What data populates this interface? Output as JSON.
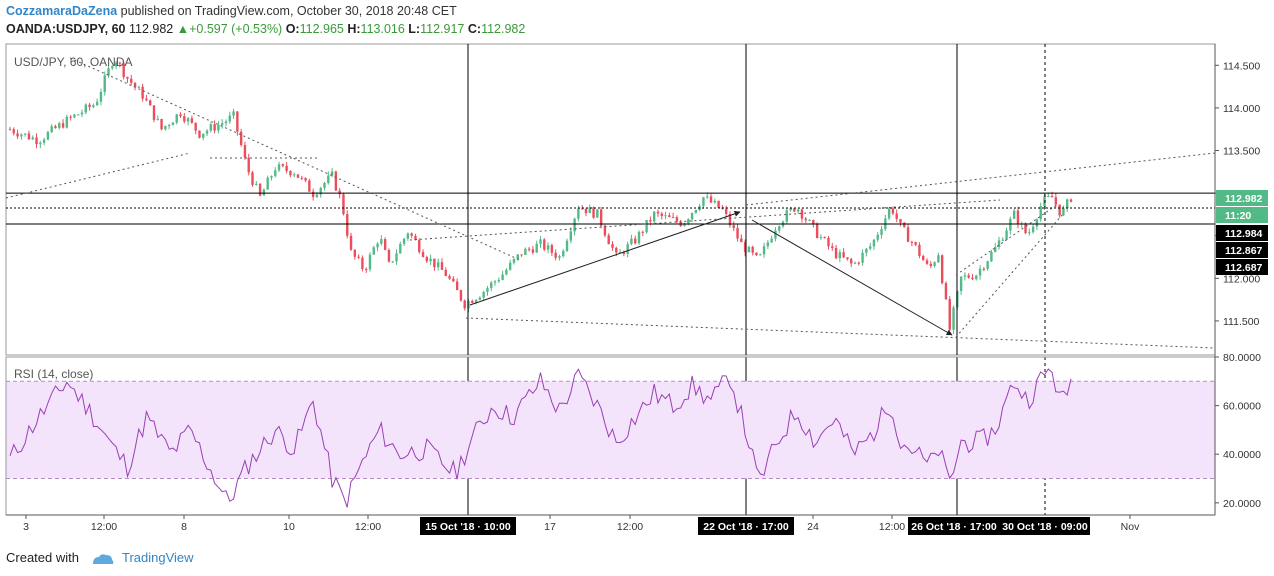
{
  "header": {
    "author": "CozzamaraDaZena",
    "published": "published on TradingView.com, October 30, 2018 20:48 CET",
    "symbol": "OANDA:USDJPY, 60",
    "last": "112.982",
    "change": "+0.597 (+0.53%)",
    "o_label": "O:",
    "o": "112.965",
    "h_label": "H:",
    "h": "113.016",
    "l_label": "L:",
    "l": "112.917",
    "c_label": "C:",
    "c": "112.982"
  },
  "footer": {
    "created_with": "Created with",
    "brand": "TradingView"
  },
  "colors": {
    "up": "#53b987",
    "down": "#eb4d5c",
    "rsi_line": "#9a3fb5",
    "rsi_band": "#f3e4fb",
    "axis_tag": "#000000",
    "last_tag": "#53b987"
  },
  "chart_data": [
    {
      "type": "candlestick",
      "title": "USD/JPY, 60, OANDA",
      "ylim": [
        111.1,
        114.75
      ],
      "y_ticks": [
        "114.500",
        "114.000",
        "113.500",
        "113.000",
        "112.500",
        "112.000",
        "111.500"
      ],
      "price_tags": [
        {
          "label": "112.982",
          "value": 112.982,
          "style": "last"
        },
        {
          "label": "11:20",
          "value": 112.86,
          "style": "last"
        },
        {
          "label": "112.984",
          "value": 112.7,
          "style": "dark"
        },
        {
          "label": "112.867",
          "value": 112.575,
          "style": "dark"
        },
        {
          "label": "112.687",
          "value": 112.45,
          "style": "dark"
        }
      ],
      "horizontal_levels": [
        112.984,
        112.867,
        112.687
      ],
      "x_ticks": [
        "3",
        "12:00",
        "8",
        "10",
        "12:00",
        "17",
        "12:00",
        "24",
        "12:00",
        "Nov"
      ],
      "x_markers": [
        "15 Oct '18 · 10:00",
        "22 Oct '18 · 17:00",
        "26 Oct '18 · 17:00",
        "30 Oct '18 · 09:00"
      ],
      "anchors": [
        [
          0,
          113.75
        ],
        [
          15,
          113.62
        ],
        [
          30,
          113.85
        ],
        [
          45,
          114.05
        ],
        [
          55,
          114.6
        ],
        [
          62,
          114.35
        ],
        [
          70,
          114.15
        ],
        [
          80,
          113.75
        ],
        [
          90,
          113.95
        ],
        [
          100,
          113.7
        ],
        [
          110,
          113.8
        ],
        [
          118,
          113.9
        ],
        [
          125,
          113.3
        ],
        [
          132,
          112.95
        ],
        [
          140,
          113.3
        ],
        [
          150,
          113.25
        ],
        [
          160,
          113.0
        ],
        [
          170,
          113.2
        ],
        [
          175,
          112.9
        ],
        [
          180,
          112.3
        ],
        [
          187,
          112.1
        ],
        [
          195,
          112.5
        ],
        [
          200,
          112.15
        ],
        [
          210,
          112.55
        ],
        [
          220,
          112.25
        ],
        [
          230,
          112.05
        ],
        [
          240,
          111.7
        ],
        [
          250,
          111.85
        ],
        [
          260,
          112.05
        ],
        [
          270,
          112.3
        ],
        [
          280,
          112.4
        ],
        [
          290,
          112.25
        ],
        [
          300,
          112.85
        ],
        [
          310,
          112.75
        ],
        [
          320,
          112.25
        ],
        [
          330,
          112.45
        ],
        [
          340,
          112.75
        ],
        [
          355,
          112.65
        ],
        [
          366,
          112.95
        ],
        [
          376,
          112.8
        ],
        [
          386,
          112.4
        ],
        [
          395,
          112.2
        ],
        [
          405,
          112.65
        ],
        [
          415,
          112.85
        ],
        [
          425,
          112.55
        ],
        [
          435,
          112.3
        ],
        [
          445,
          112.15
        ],
        [
          455,
          112.4
        ],
        [
          465,
          112.85
        ],
        [
          470,
          112.6
        ],
        [
          477,
          112.4
        ],
        [
          485,
          112.1
        ],
        [
          490,
          112.3
        ],
        [
          496,
          111.4
        ],
        [
          502,
          112.0
        ],
        [
          510,
          112.05
        ],
        [
          520,
          112.35
        ],
        [
          530,
          112.75
        ],
        [
          537,
          112.5
        ],
        [
          545,
          112.9
        ],
        [
          550,
          112.95
        ],
        [
          555,
          112.75
        ],
        [
          560,
          112.95
        ]
      ]
    },
    {
      "type": "line",
      "title": "RSI (14, close)",
      "ylim": [
        15,
        80
      ],
      "y_ticks": [
        "80.0000",
        "60.0000",
        "40.0000",
        "20.0000"
      ],
      "band": [
        30,
        70
      ],
      "anchors": [
        [
          0,
          38
        ],
        [
          15,
          55
        ],
        [
          30,
          70
        ],
        [
          42,
          58
        ],
        [
          55,
          42
        ],
        [
          62,
          35
        ],
        [
          72,
          55
        ],
        [
          85,
          40
        ],
        [
          95,
          50
        ],
        [
          105,
          35
        ],
        [
          115,
          20
        ],
        [
          125,
          35
        ],
        [
          140,
          50
        ],
        [
          150,
          42
        ],
        [
          160,
          62
        ],
        [
          170,
          30
        ],
        [
          177,
          20
        ],
        [
          185,
          35
        ],
        [
          195,
          50
        ],
        [
          205,
          40
        ],
        [
          220,
          42
        ],
        [
          235,
          32
        ],
        [
          245,
          48
        ],
        [
          255,
          60
        ],
        [
          265,
          55
        ],
        [
          280,
          70
        ],
        [
          290,
          58
        ],
        [
          300,
          72
        ],
        [
          310,
          60
        ],
        [
          320,
          45
        ],
        [
          330,
          55
        ],
        [
          340,
          65
        ],
        [
          350,
          60
        ],
        [
          360,
          68
        ],
        [
          370,
          62
        ],
        [
          380,
          72
        ],
        [
          390,
          45
        ],
        [
          395,
          28
        ],
        [
          405,
          45
        ],
        [
          415,
          58
        ],
        [
          425,
          45
        ],
        [
          435,
          55
        ],
        [
          445,
          40
        ],
        [
          455,
          48
        ],
        [
          465,
          62
        ],
        [
          470,
          45
        ],
        [
          477,
          42
        ],
        [
          485,
          35
        ],
        [
          490,
          42
        ],
        [
          496,
          28
        ],
        [
          502,
          45
        ],
        [
          512,
          45
        ],
        [
          520,
          50
        ],
        [
          530,
          70
        ],
        [
          537,
          62
        ],
        [
          545,
          72
        ],
        [
          550,
          75
        ],
        [
          555,
          60
        ],
        [
          560,
          70
        ]
      ]
    }
  ]
}
